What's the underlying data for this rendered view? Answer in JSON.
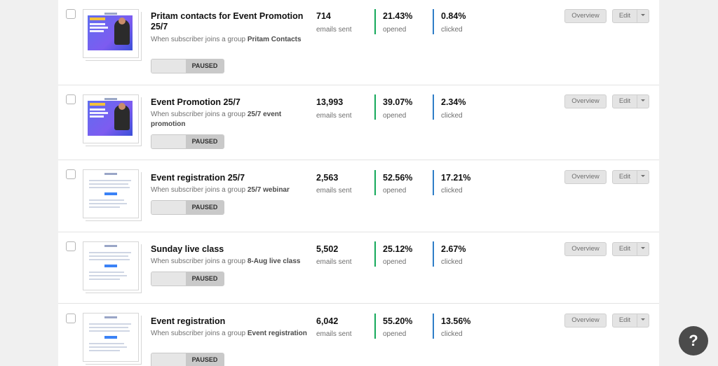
{
  "colors": {
    "opened_bar": "#14a85a",
    "clicked_bar": "#2f7ec7",
    "help_bg": "#4b4b4b"
  },
  "rows": [
    {
      "title": "Pritam contacts for Event Promotion 25/7",
      "trigger_prefix": "When subscriber joins a group ",
      "trigger_group": "Pritam Contacts",
      "status": "PAUSED",
      "emails_sent": "714",
      "emails_sent_label": "emails sent",
      "opened": "21.43%",
      "opened_label": "opened",
      "clicked": "0.84%",
      "clicked_label": "clicked",
      "overview_label": "Overview",
      "edit_label": "Edit",
      "thumb_icon": "promo-banner-thumbnail"
    },
    {
      "title": "Event Promotion 25/7",
      "trigger_prefix": "When subscriber joins a group ",
      "trigger_group": "25/7 event promotion",
      "status": "PAUSED",
      "emails_sent": "13,993",
      "emails_sent_label": "emails sent",
      "opened": "39.07%",
      "opened_label": "opened",
      "clicked": "2.34%",
      "clicked_label": "clicked",
      "overview_label": "Overview",
      "edit_label": "Edit",
      "thumb_icon": "promo-banner-thumbnail"
    },
    {
      "title": "Event registration 25/7",
      "trigger_prefix": "When subscriber joins a group ",
      "trigger_group": "25/7 webinar",
      "status": "PAUSED",
      "emails_sent": "2,563",
      "emails_sent_label": "emails sent",
      "opened": "52.56%",
      "opened_label": "opened",
      "clicked": "17.21%",
      "clicked_label": "clicked",
      "overview_label": "Overview",
      "edit_label": "Edit",
      "thumb_icon": "text-email-thumbnail"
    },
    {
      "title": "Sunday live class",
      "trigger_prefix": "When subscriber joins a group ",
      "trigger_group": "8-Aug live class",
      "status": "PAUSED",
      "emails_sent": "5,502",
      "emails_sent_label": "emails sent",
      "opened": "25.12%",
      "opened_label": "opened",
      "clicked": "2.67%",
      "clicked_label": "clicked",
      "overview_label": "Overview",
      "edit_label": "Edit",
      "thumb_icon": "text-email-thumbnail"
    },
    {
      "title": "Event registration",
      "trigger_prefix": "When subscriber joins a group ",
      "trigger_group": "Event registration",
      "status": "PAUSED",
      "emails_sent": "6,042",
      "emails_sent_label": "emails sent",
      "opened": "55.20%",
      "opened_label": "opened",
      "clicked": "13.56%",
      "clicked_label": "clicked",
      "overview_label": "Overview",
      "edit_label": "Edit",
      "thumb_icon": "text-email-thumbnail"
    }
  ],
  "help": {
    "label": "?"
  }
}
